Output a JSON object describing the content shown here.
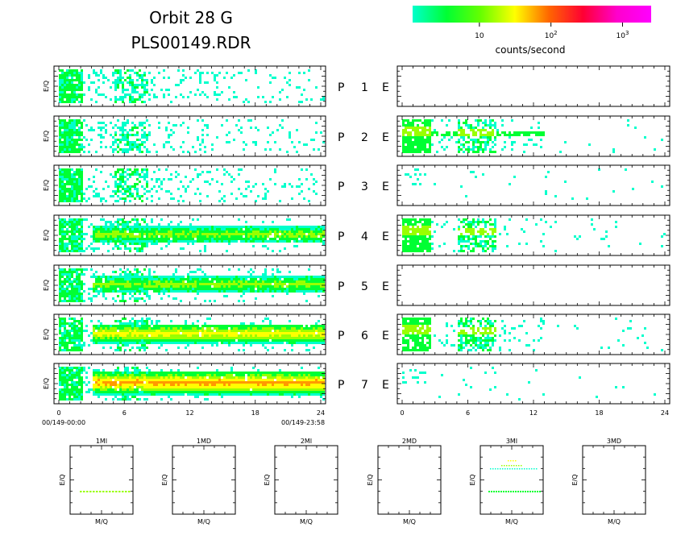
{
  "title": {
    "line1": "Orbit 28 G",
    "line2": "PLS00149.RDR"
  },
  "colorbar": {
    "stops": [
      "#00ffcc",
      "#00ff33",
      "#66ff00",
      "#ffff00",
      "#ff6600",
      "#ff0033",
      "#ff00cc",
      "#ff00ff"
    ],
    "ticks": [
      {
        "base": "10",
        "exp": "",
        "pos": 0.28
      },
      {
        "base": "10",
        "exp": "2",
        "pos": 0.58
      },
      {
        "base": "10",
        "exp": "3",
        "pos": 0.88
      }
    ],
    "label": "counts/second"
  },
  "panel_label": {
    "ylabel": "E/Q",
    "p": "P",
    "e": "E"
  },
  "rows": [
    {
      "num": "1"
    },
    {
      "num": "2"
    },
    {
      "num": "3"
    },
    {
      "num": "4"
    },
    {
      "num": "5"
    },
    {
      "num": "6"
    },
    {
      "num": "7"
    }
  ],
  "time_axis": {
    "ticks": [
      "0",
      "6",
      "12",
      "18",
      "24"
    ],
    "start_label": "00/149-00:00",
    "end_label": "00/149-23:58"
  },
  "colors": {
    "cyan": "#00ffcc",
    "green": "#00ff33",
    "lime": "#99ff00",
    "yellow": "#ffff00",
    "orange": "#ff9900",
    "red": "#ff0033"
  },
  "chart_data": [
    {
      "type": "heatmap",
      "title": "Orbit 28 G",
      "subtitle": "PLS00149.RDR",
      "xlabel": "",
      "ylabel": "E/Q",
      "x_range": [
        0,
        24
      ],
      "x_ticks": [
        0,
        6,
        12,
        18,
        24
      ],
      "colorbar_label": "counts/second",
      "colorbar_scale": "log",
      "colorbar_ticks": [
        "10",
        "10^2",
        "10^3"
      ],
      "panels": [
        {
          "name": "P 1",
          "peak_level": 1,
          "band_start_hour": null
        },
        {
          "name": "P 2",
          "peak_level": 1,
          "band_start_hour": null
        },
        {
          "name": "P 3",
          "peak_level": 1,
          "band_start_hour": null
        },
        {
          "name": "P 4",
          "peak_level": 2,
          "band_start_hour": 3
        },
        {
          "name": "P 5",
          "peak_level": 2,
          "band_start_hour": 3
        },
        {
          "name": "P 6",
          "peak_level": 3,
          "band_start_hour": 3
        },
        {
          "name": "P 7",
          "peak_level": 4,
          "band_start_hour": 3
        },
        {
          "name": "E 1",
          "peak_level": 0,
          "band_start_hour": null
        },
        {
          "name": "E 2",
          "peak_level": 2,
          "band_start_hour": 0
        },
        {
          "name": "E 3",
          "peak_level": 1,
          "band_start_hour": null
        },
        {
          "name": "E 4",
          "peak_level": 2,
          "band_start_hour": 0
        },
        {
          "name": "E 5",
          "peak_level": 0,
          "band_start_hour": null
        },
        {
          "name": "E 6",
          "peak_level": 2,
          "band_start_hour": 0
        },
        {
          "name": "E 7",
          "peak_level": 1,
          "band_start_hour": null
        }
      ]
    },
    {
      "type": "scatter",
      "xlabel": "M/Q",
      "ylabel": "E/Q",
      "panels": [
        {
          "name": "1MI"
        },
        {
          "name": "1MD"
        },
        {
          "name": "2MI"
        },
        {
          "name": "2MD"
        },
        {
          "name": "3MI"
        },
        {
          "name": "3MD"
        }
      ]
    }
  ]
}
